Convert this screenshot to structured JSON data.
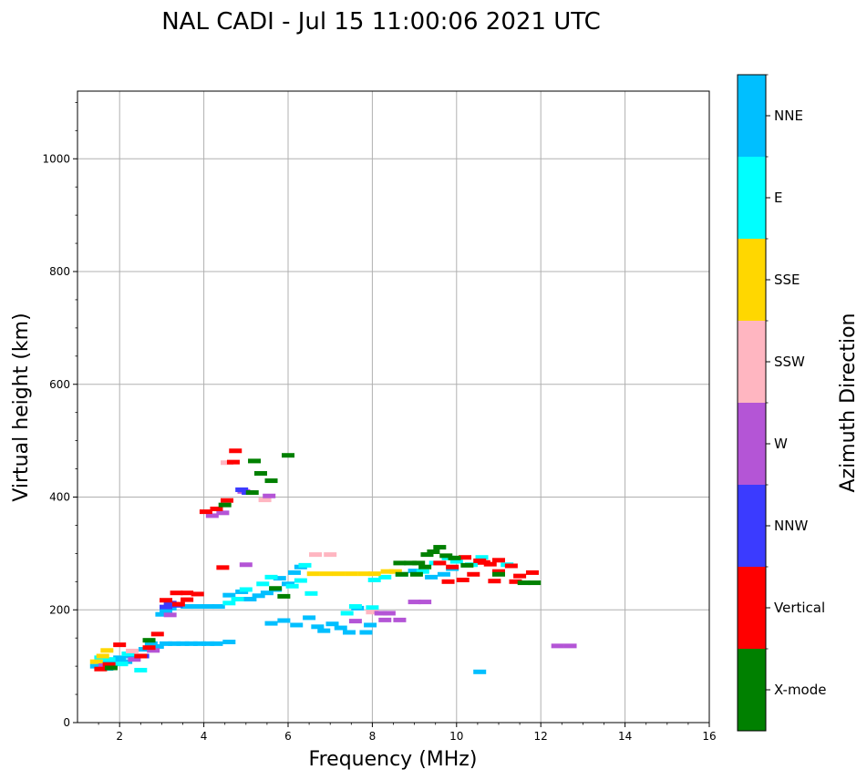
{
  "chart_data": {
    "type": "scatter",
    "title": "NAL CADI - Jul 15 11:00:06 2021 UTC",
    "xlabel": "Frequency (MHz)",
    "ylabel": "Virtual height (km)",
    "xlim": [
      1.0,
      16.0
    ],
    "ylim": [
      0,
      1120
    ],
    "xticks": [
      2,
      4,
      6,
      8,
      10,
      12,
      14,
      16
    ],
    "xtick_labels": [
      "2",
      "4",
      "6",
      "8",
      "10",
      "12",
      "14",
      "16"
    ],
    "yticks": [
      0,
      200,
      400,
      600,
      800,
      1000
    ],
    "ytick_labels": [
      "0",
      "200",
      "400",
      "600",
      "800",
      "1000"
    ],
    "grid": true,
    "colorbar": {
      "label": "Azimuth Direction",
      "categories": [
        "X-mode",
        "Vertical",
        "NNW",
        "W",
        "SSW",
        "SSE",
        "E",
        "NNE"
      ],
      "colors": [
        "#008000",
        "#ff0000",
        "#3b3bff",
        "#b455d6",
        "#ffb6c1",
        "#ffd700",
        "#00ffff",
        "#00bfff"
      ]
    },
    "series": [
      {
        "name": "NNE",
        "color": "#00bfff",
        "points": [
          [
            1.45,
            100
          ],
          [
            1.6,
            105
          ],
          [
            1.7,
            96
          ],
          [
            1.85,
            110
          ],
          [
            2.0,
            115
          ],
          [
            2.15,
            108
          ],
          [
            2.3,
            118
          ],
          [
            2.6,
            130
          ],
          [
            2.75,
            140
          ],
          [
            2.9,
            135
          ],
          [
            3.0,
            192
          ],
          [
            3.1,
            198
          ],
          [
            3.2,
            203
          ],
          [
            3.1,
            140
          ],
          [
            3.3,
            140
          ],
          [
            3.5,
            140
          ],
          [
            3.7,
            140
          ],
          [
            3.9,
            140
          ],
          [
            4.1,
            140
          ],
          [
            4.3,
            140
          ],
          [
            4.6,
            143
          ],
          [
            3.6,
            206
          ],
          [
            3.85,
            206
          ],
          [
            4.1,
            206
          ],
          [
            4.35,
            206
          ],
          [
            4.6,
            226
          ],
          [
            4.9,
            232
          ],
          [
            5.1,
            219
          ],
          [
            5.3,
            225
          ],
          [
            5.5,
            230
          ],
          [
            5.7,
            236
          ],
          [
            5.8,
            256
          ],
          [
            6.0,
            246
          ],
          [
            6.15,
            266
          ],
          [
            6.3,
            276
          ],
          [
            5.6,
            176
          ],
          [
            5.9,
            181
          ],
          [
            6.2,
            173
          ],
          [
            6.5,
            186
          ],
          [
            6.7,
            170
          ],
          [
            6.85,
            163
          ],
          [
            7.05,
            175
          ],
          [
            7.25,
            168
          ],
          [
            7.45,
            160
          ],
          [
            7.65,
            203
          ],
          [
            7.85,
            160
          ],
          [
            7.95,
            173
          ],
          [
            9.7,
            263
          ],
          [
            9.9,
            273
          ],
          [
            10.55,
            90
          ],
          [
            9.0,
            269
          ],
          [
            9.4,
            258
          ]
        ]
      },
      {
        "name": "E",
        "color": "#00ffff",
        "points": [
          [
            1.55,
            115
          ],
          [
            1.75,
            112
          ],
          [
            2.05,
            104
          ],
          [
            2.2,
            122
          ],
          [
            2.5,
            93
          ],
          [
            4.6,
            212
          ],
          [
            4.8,
            219
          ],
          [
            5.0,
            236
          ],
          [
            5.4,
            246
          ],
          [
            5.6,
            258
          ],
          [
            6.1,
            242
          ],
          [
            6.3,
            252
          ],
          [
            6.4,
            279
          ],
          [
            6.55,
            229
          ],
          [
            8.05,
            253
          ],
          [
            8.3,
            258
          ],
          [
            8.7,
            263
          ],
          [
            9.2,
            268
          ],
          [
            9.5,
            283
          ],
          [
            9.8,
            292
          ],
          [
            10.0,
            286
          ],
          [
            10.35,
            280
          ],
          [
            10.6,
            293
          ],
          [
            11.2,
            280
          ],
          [
            7.4,
            194
          ],
          [
            7.6,
            206
          ],
          [
            8.0,
            204
          ]
        ]
      },
      {
        "name": "SSE",
        "color": "#ffd700",
        "points": [
          [
            1.45,
            108
          ],
          [
            1.6,
            118
          ],
          [
            1.7,
            128
          ],
          [
            6.6,
            264
          ],
          [
            6.9,
            264
          ],
          [
            7.2,
            264
          ],
          [
            7.5,
            264
          ],
          [
            7.8,
            264
          ],
          [
            8.05,
            264
          ],
          [
            8.35,
            268
          ],
          [
            8.55,
            268
          ]
        ]
      },
      {
        "name": "SSW",
        "color": "#ffb6c1",
        "points": [
          [
            2.3,
            127
          ],
          [
            5.45,
            395
          ],
          [
            6.65,
            298
          ],
          [
            7.0,
            298
          ],
          [
            8.0,
            196
          ],
          [
            4.55,
            461
          ]
        ]
      },
      {
        "name": "W",
        "color": "#b455d6",
        "points": [
          [
            1.65,
            101
          ],
          [
            2.35,
            112
          ],
          [
            2.8,
            128
          ],
          [
            3.2,
            191
          ],
          [
            4.2,
            367
          ],
          [
            4.45,
            372
          ],
          [
            4.95,
            410
          ],
          [
            5.0,
            280
          ],
          [
            5.55,
            402
          ],
          [
            8.2,
            194
          ],
          [
            8.4,
            194
          ],
          [
            8.65,
            182
          ],
          [
            9.0,
            214
          ],
          [
            9.25,
            214
          ],
          [
            12.4,
            136
          ],
          [
            12.7,
            136
          ],
          [
            7.6,
            180
          ],
          [
            8.3,
            182
          ]
        ]
      },
      {
        "name": "NNW",
        "color": "#3b3bff",
        "points": [
          [
            3.1,
            205
          ],
          [
            3.2,
            212
          ],
          [
            3.35,
            208
          ],
          [
            4.9,
            413
          ],
          [
            5.05,
            408
          ],
          [
            2.55,
            118
          ]
        ]
      },
      {
        "name": "Vertical",
        "color": "#ff0000",
        "points": [
          [
            1.55,
            95
          ],
          [
            1.75,
            103
          ],
          [
            2.0,
            138
          ],
          [
            2.5,
            118
          ],
          [
            2.7,
            133
          ],
          [
            2.9,
            157
          ],
          [
            3.1,
            217
          ],
          [
            3.4,
            210
          ],
          [
            3.6,
            218
          ],
          [
            3.35,
            230
          ],
          [
            3.6,
            230
          ],
          [
            3.85,
            228
          ],
          [
            4.05,
            374
          ],
          [
            4.3,
            379
          ],
          [
            4.55,
            394
          ],
          [
            4.75,
            482
          ],
          [
            4.7,
            462
          ],
          [
            4.45,
            275
          ],
          [
            9.6,
            283
          ],
          [
            9.9,
            276
          ],
          [
            10.2,
            293
          ],
          [
            10.4,
            263
          ],
          [
            10.55,
            287
          ],
          [
            10.8,
            281
          ],
          [
            11.0,
            268
          ],
          [
            11.3,
            278
          ],
          [
            11.5,
            260
          ],
          [
            11.8,
            266
          ],
          [
            11.4,
            250
          ],
          [
            10.9,
            251
          ],
          [
            10.15,
            253
          ],
          [
            9.8,
            250
          ],
          [
            11.0,
            288
          ],
          [
            10.65,
            284
          ]
        ]
      },
      {
        "name": "X-mode",
        "color": "#008000",
        "points": [
          [
            1.8,
            97
          ],
          [
            2.7,
            146
          ],
          [
            4.5,
            386
          ],
          [
            5.2,
            464
          ],
          [
            5.35,
            442
          ],
          [
            5.15,
            408
          ],
          [
            5.6,
            429
          ],
          [
            8.65,
            283
          ],
          [
            8.9,
            283
          ],
          [
            9.1,
            283
          ],
          [
            9.3,
            298
          ],
          [
            9.45,
            303
          ],
          [
            9.6,
            311
          ],
          [
            9.75,
            296
          ],
          [
            9.95,
            292
          ],
          [
            9.25,
            276
          ],
          [
            8.7,
            263
          ],
          [
            9.05,
            263
          ],
          [
            11.0,
            263
          ],
          [
            11.6,
            248
          ],
          [
            11.85,
            248
          ],
          [
            10.25,
            279
          ],
          [
            6.0,
            474
          ],
          [
            5.7,
            238
          ],
          [
            5.9,
            224
          ]
        ]
      }
    ]
  }
}
